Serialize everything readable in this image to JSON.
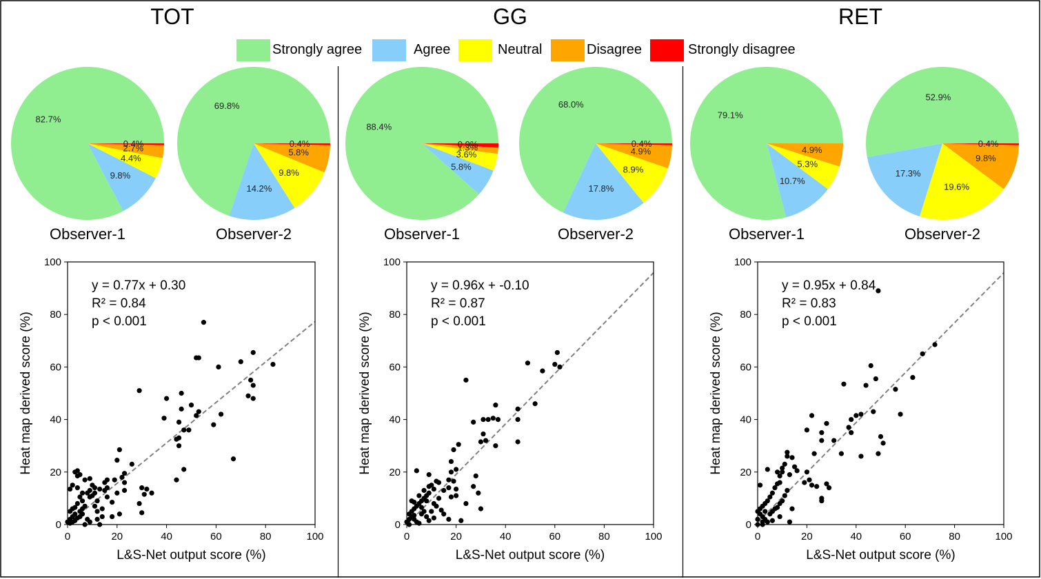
{
  "legend": [
    {
      "label": "Strongly agree",
      "color": "#90ee90"
    },
    {
      "label": "Agree",
      "color": "#87cefa"
    },
    {
      "label": "Neutral",
      "color": "#ffff00"
    },
    {
      "label": "Disagree",
      "color": "#ffa500"
    },
    {
      "label": "Strongly disagree",
      "color": "#ff0000"
    }
  ],
  "chart_data": [
    {
      "panel": "TOT",
      "pies": [
        {
          "type": "pie",
          "label": "Observer-1",
          "values": [
            82.7,
            9.8,
            4.4,
            2.7,
            0.4
          ]
        },
        {
          "type": "pie",
          "label": "Observer-2",
          "values": [
            69.8,
            14.2,
            9.8,
            5.8,
            0.4
          ]
        }
      ],
      "scatter": {
        "type": "scatter",
        "xlabel": "L&S-Net output score (%)",
        "ylabel": "Heat map derived score (%)",
        "xlim": [
          0,
          100
        ],
        "ylim": [
          0,
          100
        ],
        "xticks": [
          0,
          20,
          40,
          60,
          80,
          100
        ],
        "yticks": [
          0,
          20,
          40,
          60,
          80,
          100
        ],
        "annotation": [
          "y = 0.77x + 0.30",
          "R² =  0.84",
          "p < 0.001"
        ],
        "fit": {
          "slope": 0.77,
          "intercept": 0.3
        },
        "points": [
          [
            55,
            77
          ],
          [
            52,
            63.5
          ],
          [
            53,
            63.5
          ],
          [
            75,
            65.5
          ],
          [
            70,
            62
          ],
          [
            83,
            61
          ],
          [
            61,
            60
          ],
          [
            74,
            55
          ],
          [
            75,
            53
          ],
          [
            73,
            49
          ],
          [
            75,
            48
          ],
          [
            29,
            51
          ],
          [
            40,
            48
          ],
          [
            62,
            42
          ],
          [
            53,
            43
          ],
          [
            52,
            41.5
          ],
          [
            50,
            45.5
          ],
          [
            59,
            38
          ],
          [
            39,
            40.5
          ],
          [
            46,
            44
          ],
          [
            46,
            50
          ],
          [
            45,
            39
          ],
          [
            47,
            36
          ],
          [
            45,
            33
          ],
          [
            44,
            32.5
          ],
          [
            49,
            36
          ],
          [
            45,
            30
          ],
          [
            67,
            25
          ],
          [
            47,
            21
          ],
          [
            44,
            17
          ],
          [
            30,
            14
          ],
          [
            32,
            13.5
          ],
          [
            34,
            12
          ],
          [
            31,
            11.5
          ],
          [
            29,
            8
          ],
          [
            30,
            4.5
          ],
          [
            21,
            28.5
          ],
          [
            20,
            24.5
          ],
          [
            23,
            19.5
          ],
          [
            26,
            23
          ],
          [
            22,
            18
          ],
          [
            23,
            16
          ],
          [
            19,
            17
          ],
          [
            16,
            17
          ],
          [
            15,
            16
          ],
          [
            23,
            13
          ],
          [
            20,
            12
          ],
          [
            18,
            8.5
          ],
          [
            16,
            10.5
          ],
          [
            14,
            3
          ],
          [
            18,
            3
          ],
          [
            21,
            4
          ],
          [
            14,
            6
          ],
          [
            11,
            7
          ],
          [
            12,
            9
          ],
          [
            10,
            11
          ],
          [
            13,
            13.5
          ],
          [
            11,
            12
          ],
          [
            9,
            13
          ],
          [
            9,
            10.5
          ],
          [
            8,
            12
          ],
          [
            6,
            12
          ],
          [
            5,
            10.5
          ],
          [
            4,
            14
          ],
          [
            2,
            15
          ],
          [
            6,
            9
          ],
          [
            4,
            8
          ],
          [
            3,
            6.5
          ],
          [
            2,
            6
          ],
          [
            1,
            5
          ],
          [
            5,
            5
          ],
          [
            6,
            4
          ],
          [
            5,
            3
          ],
          [
            4,
            2.5
          ],
          [
            3,
            1.5
          ],
          [
            2,
            1
          ],
          [
            1,
            0.5
          ],
          [
            0,
            1
          ],
          [
            1,
            13.5
          ],
          [
            4,
            18.5
          ],
          [
            4,
            20.5
          ],
          [
            7,
            17
          ],
          [
            9,
            17.5
          ],
          [
            10,
            15
          ],
          [
            11,
            14
          ],
          [
            12,
            2
          ],
          [
            13,
            0
          ],
          [
            7,
            0
          ],
          [
            8,
            2
          ],
          [
            9,
            1
          ],
          [
            15,
            13
          ],
          [
            16,
            14
          ],
          [
            3,
            20
          ],
          [
            5,
            19
          ],
          [
            2,
            3
          ],
          [
            1,
            2
          ],
          [
            3,
            4
          ],
          [
            6,
            6
          ],
          [
            7,
            7
          ],
          [
            12,
            5
          ]
        ]
      }
    },
    {
      "panel": "GG",
      "pies": [
        {
          "type": "pie",
          "label": "Observer-1",
          "values": [
            88.4,
            5.8,
            3.6,
            1.3,
            0.9
          ]
        },
        {
          "type": "pie",
          "label": "Observer-2",
          "values": [
            68.0,
            17.8,
            8.9,
            4.9,
            0.4
          ]
        }
      ],
      "scatter": {
        "type": "scatter",
        "xlabel": "L&S-Net output score (%)",
        "ylabel": "Heat map derived score (%)",
        "xlim": [
          0,
          100
        ],
        "ylim": [
          0,
          100
        ],
        "xticks": [
          0,
          20,
          40,
          60,
          80,
          100
        ],
        "yticks": [
          0,
          20,
          40,
          60,
          80,
          100
        ],
        "annotation": [
          "y = 0.96x + -0.10",
          "R² =  0.87",
          "p < 0.001"
        ],
        "fit": {
          "slope": 0.96,
          "intercept": -0.1
        },
        "points": [
          [
            61,
            65.5
          ],
          [
            49,
            61.5
          ],
          [
            60,
            61
          ],
          [
            62,
            60
          ],
          [
            55,
            58.5
          ],
          [
            24,
            55
          ],
          [
            52,
            46
          ],
          [
            36,
            45.5
          ],
          [
            45,
            44
          ],
          [
            35,
            40.5
          ],
          [
            37,
            40
          ],
          [
            31,
            40
          ],
          [
            33,
            40
          ],
          [
            45,
            40
          ],
          [
            27,
            39
          ],
          [
            31,
            34.5
          ],
          [
            30,
            31.5
          ],
          [
            32,
            32
          ],
          [
            36,
            30
          ],
          [
            45,
            31.5
          ],
          [
            21,
            30.5
          ],
          [
            19,
            28.5
          ],
          [
            18,
            24
          ],
          [
            20,
            21
          ],
          [
            18,
            20
          ],
          [
            17,
            17
          ],
          [
            19,
            16.5
          ],
          [
            17,
            14
          ],
          [
            20,
            13.5
          ],
          [
            28,
            18.5
          ],
          [
            27,
            14.5
          ],
          [
            29,
            12
          ],
          [
            18,
            10.5
          ],
          [
            20,
            11
          ],
          [
            24,
            8
          ],
          [
            30,
            6
          ],
          [
            22,
            1.5
          ],
          [
            12,
            16.5
          ],
          [
            10,
            15
          ],
          [
            11,
            13.5
          ],
          [
            9,
            12
          ],
          [
            8,
            11
          ],
          [
            7,
            10
          ],
          [
            6,
            9
          ],
          [
            5,
            8
          ],
          [
            4,
            7
          ],
          [
            3,
            6
          ],
          [
            2,
            5
          ],
          [
            1,
            4
          ],
          [
            2,
            3
          ],
          [
            3,
            2
          ],
          [
            4,
            1
          ],
          [
            5,
            0.5
          ],
          [
            1,
            0
          ],
          [
            0,
            1
          ],
          [
            2,
            9
          ],
          [
            3,
            8.5
          ],
          [
            5,
            11
          ],
          [
            7,
            13
          ],
          [
            9,
            14.5
          ],
          [
            13,
            10
          ],
          [
            12,
            7
          ],
          [
            14,
            5.5
          ],
          [
            15,
            4
          ],
          [
            17,
            2
          ],
          [
            11,
            2.5
          ],
          [
            9,
            1.5
          ],
          [
            8,
            3
          ],
          [
            6,
            4
          ],
          [
            7,
            5
          ],
          [
            10,
            5
          ],
          [
            4,
            20.5
          ],
          [
            9,
            19
          ],
          [
            13,
            16
          ],
          [
            15,
            13
          ],
          [
            6,
            6.5
          ],
          [
            8,
            9
          ],
          [
            11,
            8
          ],
          [
            3,
            3.5
          ],
          [
            1,
            2
          ]
        ]
      }
    },
    {
      "panel": "RET",
      "pies": [
        {
          "type": "pie",
          "label": "Observer-1",
          "values": [
            79.1,
            10.7,
            5.3,
            4.9,
            0.0
          ]
        },
        {
          "type": "pie",
          "label": "Observer-2",
          "values": [
            52.9,
            17.3,
            19.6,
            9.8,
            0.4
          ]
        }
      ],
      "scatter": {
        "type": "scatter",
        "xlabel": "L&S-Net output score (%)",
        "ylabel": "Heat map derived score (%)",
        "xlim": [
          0,
          100
        ],
        "ylim": [
          0,
          100
        ],
        "xticks": [
          0,
          20,
          40,
          60,
          80,
          100
        ],
        "yticks": [
          0,
          20,
          40,
          60,
          80,
          100
        ],
        "annotation": [
          "y = 0.95x + 0.84",
          "R² =  0.83",
          "p < 0.001"
        ],
        "fit": {
          "slope": 0.95,
          "intercept": 0.84
        },
        "points": [
          [
            49,
            89
          ],
          [
            72,
            68.5
          ],
          [
            67,
            65
          ],
          [
            63,
            56
          ],
          [
            46,
            60.5
          ],
          [
            48,
            55.5
          ],
          [
            44,
            53
          ],
          [
            35,
            53.5
          ],
          [
            56,
            51.5
          ],
          [
            58,
            42
          ],
          [
            47,
            43
          ],
          [
            42,
            42
          ],
          [
            38,
            40
          ],
          [
            40,
            41.5
          ],
          [
            37,
            37
          ],
          [
            38,
            35
          ],
          [
            42,
            26
          ],
          [
            49,
            27
          ],
          [
            50,
            33.5
          ],
          [
            51,
            31
          ],
          [
            34,
            27
          ],
          [
            31,
            32
          ],
          [
            26,
            32
          ],
          [
            26,
            35
          ],
          [
            28,
            38.5
          ],
          [
            20,
            36
          ],
          [
            22,
            41.5
          ],
          [
            23,
            27
          ],
          [
            20,
            20
          ],
          [
            21,
            17
          ],
          [
            22,
            15
          ],
          [
            24,
            14.5
          ],
          [
            26,
            9
          ],
          [
            26,
            10
          ],
          [
            28,
            15.5
          ],
          [
            29,
            14
          ],
          [
            19,
            16
          ],
          [
            16,
            20.5
          ],
          [
            15,
            22
          ],
          [
            14,
            25.5
          ],
          [
            12,
            27.5
          ],
          [
            12,
            26
          ],
          [
            11,
            23
          ],
          [
            10,
            20
          ],
          [
            9,
            18.5
          ],
          [
            9,
            16
          ],
          [
            8,
            15.5
          ],
          [
            7,
            14
          ],
          [
            6,
            12
          ],
          [
            5,
            10.5
          ],
          [
            4,
            9
          ],
          [
            3,
            8
          ],
          [
            2,
            7
          ],
          [
            1,
            6
          ],
          [
            0,
            5
          ],
          [
            1,
            4
          ],
          [
            2,
            3
          ],
          [
            3,
            2
          ],
          [
            4,
            1
          ],
          [
            2,
            0
          ],
          [
            0,
            2
          ],
          [
            1,
            15
          ],
          [
            4,
            21
          ],
          [
            8,
            20
          ],
          [
            10,
            21.5
          ],
          [
            12,
            13
          ],
          [
            11,
            11
          ],
          [
            10,
            9
          ],
          [
            9,
            8
          ],
          [
            8,
            6.5
          ],
          [
            7,
            6
          ],
          [
            6,
            5
          ],
          [
            5,
            4
          ],
          [
            13,
            19
          ],
          [
            14,
            6
          ],
          [
            13,
            1
          ],
          [
            9,
            3
          ],
          [
            6,
            1.5
          ],
          [
            3,
            5
          ],
          [
            2,
            1
          ],
          [
            0,
            0
          ]
        ]
      }
    }
  ]
}
